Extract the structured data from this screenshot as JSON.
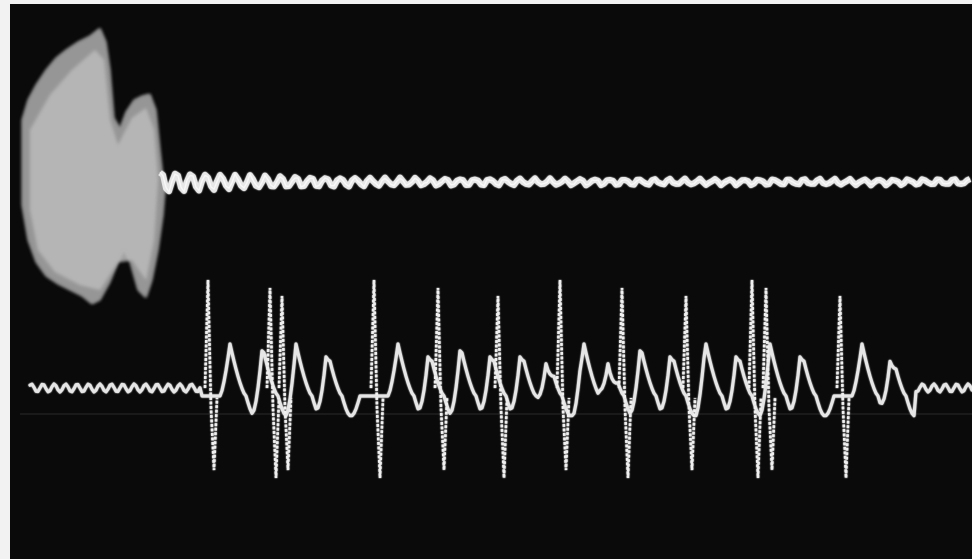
{
  "scene": {
    "subject": "oscilloscope-traces",
    "colors": {
      "screen": "#0a0a0a",
      "trace": "#e8e8e8",
      "border": "#f2f2f2"
    }
  }
}
